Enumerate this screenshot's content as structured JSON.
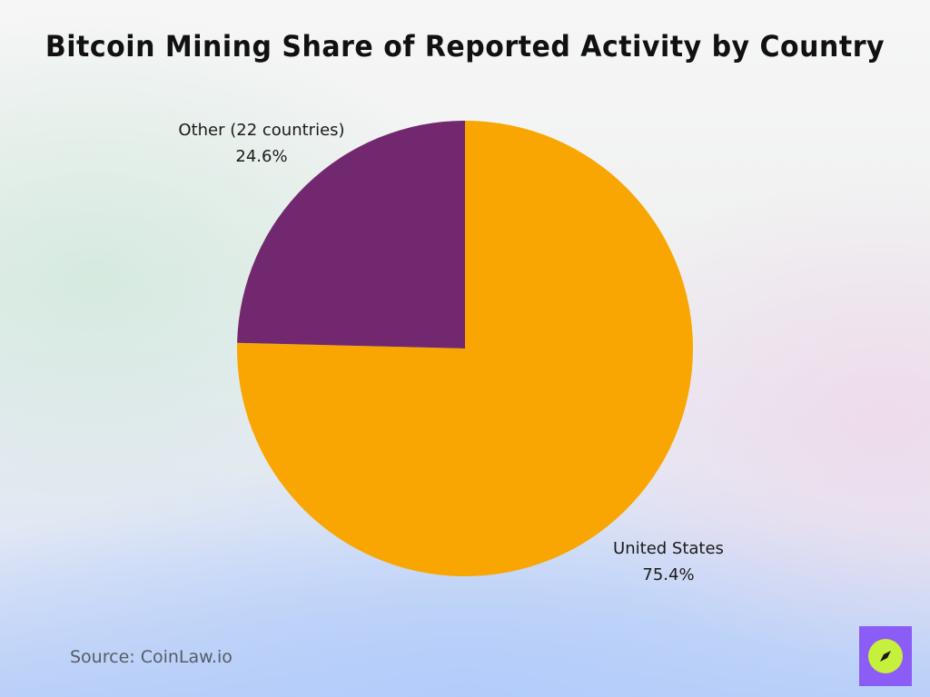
{
  "colors": {
    "united_states": "#F9A602",
    "other": "#72286E",
    "logo_bg": "#8B5CF6",
    "logo_mark": "#C6F03C"
  },
  "chart_data": {
    "type": "pie",
    "title": "Bitcoin Mining Share of Reported Activity by Country",
    "slices": [
      {
        "label": "United States",
        "value": 75.4,
        "value_label": "75.4%"
      },
      {
        "label": "Other (22 countries)",
        "value": 24.6,
        "value_label": "24.6%"
      }
    ]
  },
  "footer": {
    "source": "Source: CoinLaw.io"
  },
  "logo": {
    "icon": "compass-icon"
  }
}
